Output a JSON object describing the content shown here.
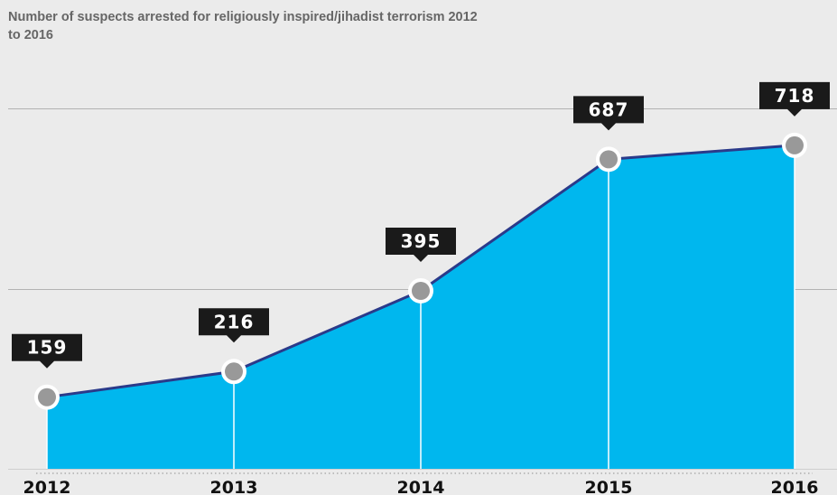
{
  "chart_data": {
    "type": "area",
    "title": "Number of suspects arrested for religiously inspired/jihadist terrorism 2012 to 2016",
    "categories": [
      "2012",
      "2013",
      "2014",
      "2015",
      "2016"
    ],
    "values": [
      159,
      216,
      395,
      687,
      718
    ],
    "series": [
      {
        "name": "",
        "values": [
          159,
          216,
          395,
          687,
          718
        ]
      }
    ],
    "data_labels": [
      "159",
      "216",
      "395",
      "687",
      "718"
    ],
    "xlabel": "",
    "ylabel": "",
    "ylim": [
      0,
      800
    ],
    "gridlines": [
      400,
      800
    ],
    "grid": true,
    "legend": "none",
    "colors": {
      "area_fill": "#00b7ee",
      "line": "#2a3a8a",
      "marker_fill": "#999999",
      "marker_stroke": "#ffffff",
      "label_box": "#1a1a1a",
      "gridline": "#b3b3b3",
      "background": "#ebebeb"
    }
  }
}
